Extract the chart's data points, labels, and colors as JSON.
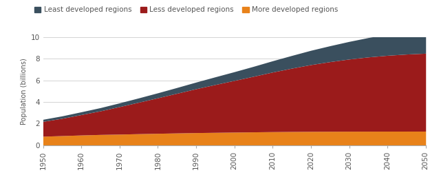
{
  "years": [
    1950,
    1955,
    1960,
    1965,
    1970,
    1975,
    1980,
    1985,
    1990,
    1995,
    2000,
    2005,
    2010,
    2015,
    2020,
    2025,
    2030,
    2035,
    2040,
    2045,
    2050
  ],
  "more_developed": [
    0.813,
    0.869,
    0.926,
    0.976,
    1.007,
    1.048,
    1.083,
    1.116,
    1.148,
    1.171,
    1.194,
    1.216,
    1.237,
    1.252,
    1.263,
    1.271,
    1.276,
    1.279,
    1.282,
    1.284,
    1.285
  ],
  "less_developed": [
    1.374,
    1.607,
    1.894,
    2.189,
    2.554,
    2.917,
    3.294,
    3.68,
    4.069,
    4.436,
    4.793,
    5.155,
    5.527,
    5.87,
    6.189,
    6.456,
    6.692,
    6.883,
    7.032,
    7.145,
    7.224
  ],
  "least_developed": [
    0.193,
    0.224,
    0.258,
    0.299,
    0.346,
    0.4,
    0.462,
    0.535,
    0.617,
    0.712,
    0.81,
    0.921,
    1.045,
    1.179,
    1.327,
    1.476,
    1.634,
    1.797,
    1.96,
    2.12,
    2.279
  ],
  "color_more": "#E8821A",
  "color_less": "#9B1B1B",
  "color_least": "#3A4F5E",
  "ylabel": "Population (billions)",
  "ylim": [
    0,
    10
  ],
  "yticks": [
    0,
    2,
    4,
    6,
    8,
    10
  ],
  "xticks": [
    1950,
    1960,
    1970,
    1980,
    1990,
    2000,
    2010,
    2020,
    2030,
    2040,
    2050
  ],
  "legend_labels": [
    "Least developed regions",
    "Less developed regions",
    "More developed regions"
  ],
  "background_color": "#ffffff",
  "grid_color": "#cccccc",
  "tick_label_color": "#555555",
  "axis_label_color": "#555555"
}
